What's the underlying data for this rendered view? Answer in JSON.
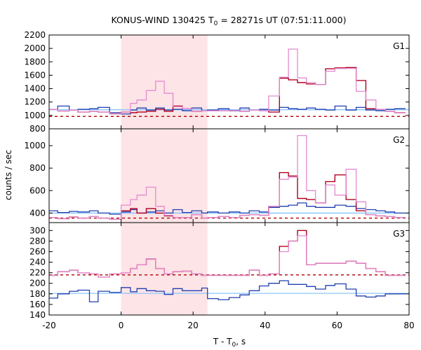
{
  "chart_data": {
    "type": "line",
    "title": "KONUS-WIND 130425 T",
    "title_sub": "0",
    "title_rest": " = 28271s UT (07:51:11.000)",
    "xlabel": "T - T",
    "xlabel_sub": "0",
    "xlabel_rest": ", s",
    "ylabel": "counts / sec",
    "xlim": [
      -20,
      80
    ],
    "x_ticks": [
      -20,
      0,
      20,
      40,
      60,
      80
    ],
    "x_tick_labels": [
      "-20",
      "0",
      "20",
      "40",
      "60",
      "80"
    ],
    "highlight_region": {
      "x": [
        0,
        24
      ],
      "color": "#fde4e6"
    },
    "bin_edges": [
      -20,
      -17.6,
      -14.4,
      -12,
      -8.8,
      -6.4,
      -3.2,
      0,
      2.6,
      4.4,
      7,
      9.6,
      12,
      14.4,
      17,
      19.6,
      22.4,
      24,
      27,
      30,
      33,
      35.6,
      38.4,
      41,
      44,
      46.5,
      49,
      51.5,
      54,
      56.8,
      59.4,
      62.5,
      65.3,
      68,
      70.8,
      73.4,
      76,
      79,
      80
    ],
    "panels": [
      {
        "name": "G1",
        "ylim": [
          800,
          2200
        ],
        "y_ticks": [
          800,
          1000,
          1200,
          1400,
          1600,
          1800,
          2000,
          2200
        ],
        "y_tick_labels": [
          "800",
          "1000",
          "1200",
          "1400",
          "1600",
          "1800",
          "2000",
          "2200"
        ],
        "background_level": 985,
        "background_fit_level": 1085,
        "signal": [
          1090,
          1065,
          1080,
          1050,
          1060,
          1050,
          1025,
          1050,
          1040,
          1050,
          1060,
          1090,
          1060,
          1140,
          1100,
          1060,
          1070,
          1070,
          1070,
          1075,
          1060,
          1080,
          1070,
          1050,
          1555,
          1530,
          1490,
          1470,
          1460,
          1695,
          1710,
          1715,
          1520,
          1100,
          1090,
          1060,
          1040
        ],
        "signal_pink": [
          1090,
          1065,
          1080,
          1050,
          1060,
          1050,
          1025,
          1050,
          1180,
          1230,
          1370,
          1510,
          1330,
          1130,
          1100,
          1060,
          1070,
          1070,
          1070,
          1075,
          1060,
          1080,
          1070,
          1290,
          1570,
          1990,
          1560,
          1490,
          1460,
          1660,
          1700,
          1700,
          1360,
          1230,
          1090,
          1060,
          1040
        ],
        "signal_blue": [
          1090,
          1140,
          1080,
          1090,
          1100,
          1120,
          1040,
          1020,
          1080,
          1110,
          1080,
          1110,
          1080,
          1090,
          1070,
          1110,
          1070,
          1080,
          1100,
          1070,
          1110,
          1080,
          1090,
          1080,
          1120,
          1100,
          1090,
          1110,
          1090,
          1080,
          1140,
          1080,
          1120,
          1080,
          1070,
          1090,
          1100
        ]
      },
      {
        "name": "G2",
        "ylim": [
          315,
          1150
        ],
        "y_ticks": [
          400,
          600,
          800,
          1000
        ],
        "y_tick_labels": [
          "400",
          "600",
          "800",
          "1000"
        ],
        "background_level": 355,
        "background_fit_level": 400,
        "signal": [
          360,
          350,
          365,
          355,
          370,
          355,
          345,
          420,
          440,
          400,
          440,
          400,
          375,
          360,
          360,
          385,
          355,
          360,
          370,
          360,
          380,
          385,
          380,
          460,
          760,
          730,
          530,
          520,
          490,
          680,
          740,
          520,
          420,
          385,
          375,
          370,
          360
        ],
        "signal_pink": [
          360,
          350,
          365,
          355,
          370,
          355,
          345,
          470,
          520,
          560,
          630,
          460,
          380,
          360,
          360,
          385,
          355,
          360,
          370,
          360,
          380,
          385,
          380,
          460,
          700,
          720,
          1090,
          600,
          490,
          650,
          560,
          790,
          500,
          385,
          375,
          370,
          360
        ],
        "signal_blue": [
          420,
          405,
          415,
          410,
          420,
          400,
          390,
          410,
          430,
          400,
          410,
          420,
          400,
          430,
          405,
          420,
          400,
          410,
          400,
          410,
          400,
          420,
          410,
          450,
          460,
          470,
          490,
          460,
          450,
          450,
          470,
          460,
          440,
          430,
          420,
          410,
          400
        ]
      },
      {
        "name": "G3",
        "ylim": [
          140,
          315
        ],
        "y_ticks": [
          140,
          160,
          180,
          200,
          220,
          240,
          260,
          280,
          300
        ],
        "y_tick_labels": [
          "140",
          "160",
          "180",
          "200",
          "220",
          "240",
          "260",
          "280",
          "300"
        ],
        "background_level": 216,
        "background_fit_level": 181,
        "signal": [
          215,
          222,
          225,
          220,
          218,
          212,
          218,
          220,
          228,
          235,
          246,
          228,
          218,
          222,
          223,
          218,
          215,
          215,
          215,
          215,
          215,
          225,
          215,
          218,
          270,
          280,
          300,
          235,
          238,
          238,
          238,
          242,
          238,
          228,
          222,
          215,
          215
        ],
        "signal_pink": [
          215,
          222,
          225,
          220,
          218,
          212,
          218,
          220,
          228,
          235,
          246,
          228,
          218,
          222,
          223,
          218,
          215,
          215,
          215,
          215,
          215,
          225,
          215,
          218,
          260,
          280,
          290,
          235,
          238,
          238,
          238,
          242,
          238,
          228,
          222,
          215,
          215
        ],
        "signal_blue": [
          172,
          180,
          185,
          187,
          165,
          185,
          183,
          192,
          184,
          190,
          186,
          185,
          179,
          190,
          186,
          186,
          191,
          171,
          169,
          173,
          178,
          186,
          195,
          200,
          205,
          198,
          198,
          194,
          189,
          196,
          199,
          189,
          176,
          174,
          176,
          180,
          180
        ]
      }
    ]
  }
}
